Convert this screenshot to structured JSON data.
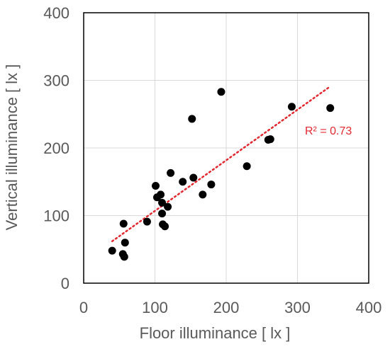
{
  "chart_data": {
    "type": "scatter",
    "xlabel": "Floor illuminance [ lx ]",
    "ylabel": "Vertical illuminance [ lx ]",
    "xlim": [
      0,
      400
    ],
    "ylim": [
      0,
      400
    ],
    "xticks": [
      "0",
      "100",
      "200",
      "300",
      "400"
    ],
    "yticks": [
      "0",
      "100",
      "200",
      "300",
      "400"
    ],
    "grid": true,
    "points": [
      {
        "x": 40,
        "y": 48
      },
      {
        "x": 55,
        "y": 43
      },
      {
        "x": 57,
        "y": 39
      },
      {
        "x": 58,
        "y": 60
      },
      {
        "x": 56,
        "y": 88
      },
      {
        "x": 89,
        "y": 91
      },
      {
        "x": 101,
        "y": 144
      },
      {
        "x": 103,
        "y": 127
      },
      {
        "x": 108,
        "y": 131
      },
      {
        "x": 110,
        "y": 119
      },
      {
        "x": 110,
        "y": 103
      },
      {
        "x": 111,
        "y": 87
      },
      {
        "x": 114,
        "y": 84
      },
      {
        "x": 118,
        "y": 113
      },
      {
        "x": 122,
        "y": 163
      },
      {
        "x": 139,
        "y": 150
      },
      {
        "x": 152,
        "y": 243
      },
      {
        "x": 154,
        "y": 156
      },
      {
        "x": 167,
        "y": 131
      },
      {
        "x": 179,
        "y": 146
      },
      {
        "x": 193,
        "y": 283
      },
      {
        "x": 229,
        "y": 173
      },
      {
        "x": 259,
        "y": 212
      },
      {
        "x": 262,
        "y": 213
      },
      {
        "x": 292,
        "y": 261
      },
      {
        "x": 346,
        "y": 259
      }
    ],
    "trendline": {
      "type": "linear",
      "x": [
        40,
        346
      ],
      "y": [
        62,
        291
      ],
      "color": "#e3272f",
      "style": "dotted"
    },
    "annotation": "R² = 0.73",
    "marker_color": "#000000",
    "gridline_color": "#d9d9d9"
  }
}
